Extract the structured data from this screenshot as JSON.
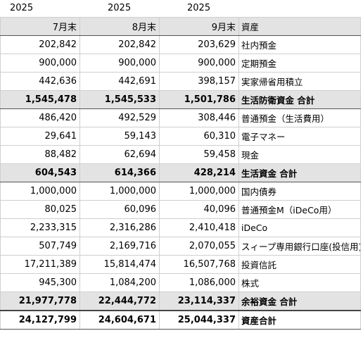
{
  "year_labels": [
    "2025",
    "2025",
    "2025"
  ],
  "headers": [
    "7月末",
    "8月末",
    "9月末",
    "資産"
  ],
  "rows": [
    {
      "type": "item",
      "v": [
        "202,842",
        "202,842",
        "203,629"
      ],
      "label": "社内預金"
    },
    {
      "type": "item",
      "v": [
        "900,000",
        "900,000",
        "900,000"
      ],
      "label": "定期預金"
    },
    {
      "type": "item",
      "v": [
        "442,636",
        "442,691",
        "398,157"
      ],
      "label": "実家帰省用積立"
    },
    {
      "type": "sub",
      "v": [
        "1,545,478",
        "1,545,533",
        "1,501,786"
      ],
      "label": "生活防衛資金 合計"
    },
    {
      "type": "item",
      "v": [
        "486,420",
        "492,529",
        "308,446"
      ],
      "label": "普通預金（生活費用）"
    },
    {
      "type": "item",
      "v": [
        "29,641",
        "59,143",
        "60,310"
      ],
      "label": "電子マネー"
    },
    {
      "type": "item",
      "v": [
        "88,482",
        "62,694",
        "59,458"
      ],
      "label": "現金"
    },
    {
      "type": "sub",
      "v": [
        "604,543",
        "614,366",
        "428,214"
      ],
      "label": "生活資金 合計"
    },
    {
      "type": "item",
      "v": [
        "1,000,000",
        "1,000,000",
        "1,000,000"
      ],
      "label": "国内債券"
    },
    {
      "type": "item",
      "v": [
        "80,025",
        "60,096",
        "40,096"
      ],
      "label": "普通預金M（iDeCo用）"
    },
    {
      "type": "item",
      "v": [
        "2,233,315",
        "2,316,286",
        "2,410,418"
      ],
      "label": "iDeCo"
    },
    {
      "type": "item",
      "v": [
        "507,749",
        "2,169,716",
        "2,070,055"
      ],
      "label": "スィープ専用銀行口座(投信用)"
    },
    {
      "type": "item",
      "v": [
        "17,211,389",
        "15,814,474",
        "16,507,768"
      ],
      "label": "投資信託"
    },
    {
      "type": "item",
      "v": [
        "945,300",
        "1,084,200",
        "1,086,000"
      ],
      "label": "株式"
    },
    {
      "type": "sub",
      "v": [
        "21,977,778",
        "22,444,772",
        "23,114,337"
      ],
      "label": "余裕資金 合計"
    },
    {
      "type": "grand",
      "v": [
        "24,127,799",
        "24,604,671",
        "25,044,337"
      ],
      "label": "資産合計"
    }
  ]
}
